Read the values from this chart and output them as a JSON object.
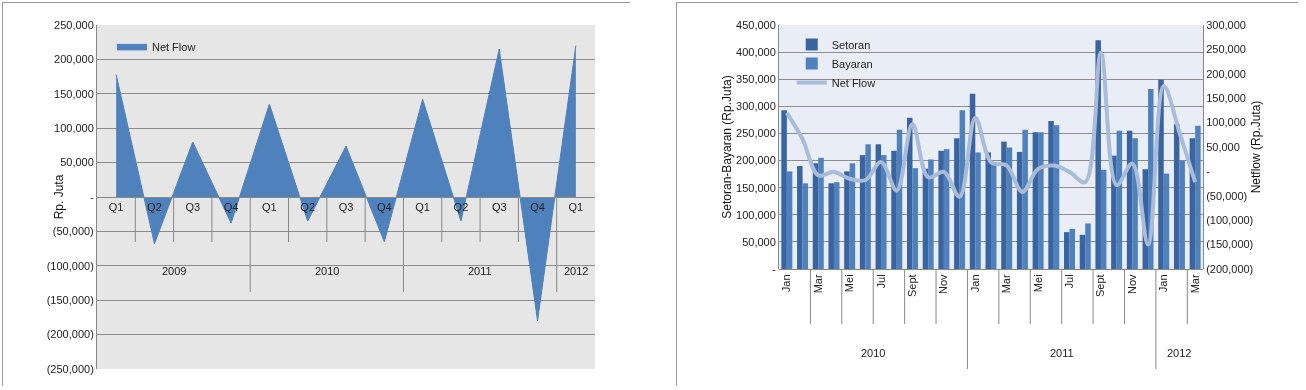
{
  "chart_data": [
    {
      "type": "area",
      "ylabel": "Rp. Juta",
      "categories": [
        "Q1",
        "Q2",
        "Q3",
        "Q4",
        "Q1",
        "Q2",
        "Q3",
        "Q4",
        "Q1",
        "Q2",
        "Q3",
        "Q4",
        "Q1"
      ],
      "series": [
        {
          "name": "Net Flow",
          "color": "#4f81bd",
          "values": [
            178000,
            -68000,
            80000,
            -38000,
            135000,
            -35000,
            74000,
            -65000,
            142000,
            -35000,
            215000,
            -180000,
            220000
          ]
        }
      ],
      "ylim": [
        -250000,
        250000
      ],
      "yticks": [
        {
          "value": -250000,
          "label": "(250,000)"
        },
        {
          "value": -200000,
          "label": "(200,000)"
        },
        {
          "value": -150000,
          "label": "(150,000)"
        },
        {
          "value": -100000,
          "label": "(100,000)"
        },
        {
          "value": -50000,
          "label": "(50,000)"
        },
        {
          "value": 0,
          "label": "-"
        },
        {
          "value": 50000,
          "label": "50,000"
        },
        {
          "value": 100000,
          "label": "100,000"
        },
        {
          "value": 150000,
          "label": "150,000"
        },
        {
          "value": 200000,
          "label": "200,000"
        },
        {
          "value": 250000,
          "label": "250,000"
        }
      ],
      "annotations": [
        "2009",
        "2010",
        "2011",
        "2012"
      ],
      "grid": "y",
      "legend": "top left"
    },
    {
      "type": "bar",
      "ylabel": "Setoran-Bayaran (Rp.Juta)",
      "y2label": "Netflow (Rp.Juta)",
      "categories": [
        "Jan",
        null,
        "Mar",
        null,
        "Mei",
        null,
        "Jul",
        null,
        "Sept",
        null,
        "Nov",
        null,
        "Jan",
        null,
        "Mar",
        null,
        "Mei",
        null,
        "Jul",
        null,
        "Sept",
        null,
        "Nov",
        null,
        "Jan",
        null,
        "Mar"
      ],
      "series": [
        {
          "name": "Setoran",
          "color": "#3a64a0",
          "values": [
            293000,
            190000,
            195000,
            158000,
            180000,
            210000,
            230000,
            218000,
            279000,
            185000,
            218000,
            241000,
            323000,
            215000,
            235000,
            216000,
            252000,
            273000,
            68000,
            63000,
            422000,
            209000,
            255000,
            184000,
            349000,
            267000,
            241000
          ]
        },
        {
          "name": "Bayaran",
          "color": "#4f81bd",
          "values": [
            180000,
            158000,
            205000,
            160000,
            195000,
            230000,
            210000,
            257000,
            186000,
            202000,
            221000,
            293000,
            215000,
            195000,
            224000,
            257000,
            252000,
            265000,
            74000,
            84000,
            183000,
            255000,
            241000,
            332000,
            176000,
            200000,
            264000
          ]
        },
        {
          "name": "Net Flow",
          "type": "line",
          "axis": "y2",
          "color": "#a9bcdb",
          "values": [
            120000,
            66000,
            -8000,
            -1000,
            -15000,
            -18000,
            19000,
            -39000,
            97000,
            -12000,
            -1000,
            -52000,
            110000,
            19000,
            12000,
            -42000,
            5000,
            12000,
            -1000,
            -22000,
            243000,
            -28000,
            16000,
            -150000,
            175000,
            80000,
            -22000
          ]
        }
      ],
      "ylim": [
        0,
        450000
      ],
      "yticks": [
        {
          "value": 0,
          "label": "-"
        },
        {
          "value": 50000,
          "label": "50,000"
        },
        {
          "value": 100000,
          "label": "100,000"
        },
        {
          "value": 150000,
          "label": "150,000"
        },
        {
          "value": 200000,
          "label": "200,000"
        },
        {
          "value": 250000,
          "label": "250,000"
        },
        {
          "value": 300000,
          "label": "300,000"
        },
        {
          "value": 350000,
          "label": "350,000"
        },
        {
          "value": 400000,
          "label": "400,000"
        },
        {
          "value": 450000,
          "label": "450,000"
        }
      ],
      "y2lim": [
        -200000,
        300000
      ],
      "y2ticks": [
        {
          "value": -200000,
          "label": "(200,000)"
        },
        {
          "value": -150000,
          "label": "(150,000)"
        },
        {
          "value": -100000,
          "label": "(100,000)"
        },
        {
          "value": -50000,
          "label": "(50,000)"
        },
        {
          "value": 0,
          "label": "-"
        },
        {
          "value": 50000,
          "label": "50,000"
        },
        {
          "value": 100000,
          "label": "100,000"
        },
        {
          "value": 150000,
          "label": "150,000"
        },
        {
          "value": 200000,
          "label": "200,000"
        },
        {
          "value": 250000,
          "label": "250,000"
        },
        {
          "value": 300000,
          "label": "300,000"
        }
      ],
      "annotations": [
        "2010",
        "2011",
        "2012"
      ],
      "grid": "y",
      "legend": "top left"
    }
  ]
}
